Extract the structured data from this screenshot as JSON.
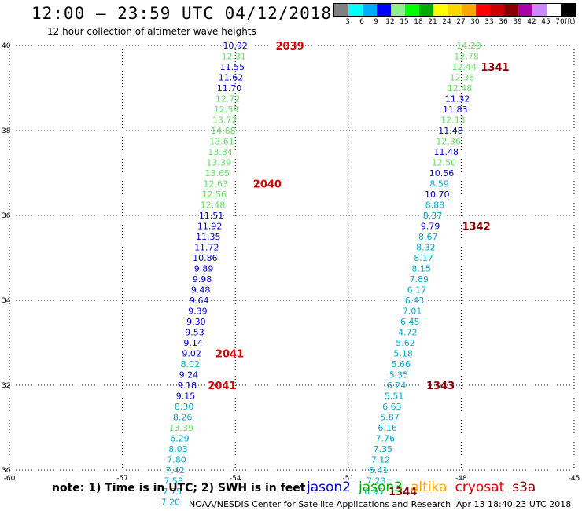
{
  "header": {
    "title": "12:00 – 23:59 UTC 04/12/2018",
    "subtitle": "12 hour collection of altimeter wave heights"
  },
  "color_scale": {
    "labels": [
      "3",
      "6",
      "9",
      "12",
      "15",
      "18",
      "21",
      "24",
      "27",
      "30",
      "33",
      "36",
      "39",
      "42",
      "45",
      "70"
    ],
    "unit": "(ft)",
    "colors": [
      "#808080",
      "#00ffff",
      "#00aaff",
      "#0000ff",
      "#90ee90",
      "#00ff00",
      "#00aa00",
      "#ffff00",
      "#ffd700",
      "#ffa500",
      "#ff0000",
      "#cc0000",
      "#880000",
      "#aa00aa",
      "#cc88ff",
      "#ffffff",
      "#000000"
    ]
  },
  "chart_data": {
    "type": "map",
    "x_axis": {
      "ticks": [
        "-60",
        "-57",
        "-54",
        "-51",
        "-48",
        "-45"
      ],
      "range": [
        -60,
        -45
      ]
    },
    "y_axis": {
      "ticks": [
        "30",
        "32",
        "34",
        "36",
        "38",
        "40"
      ],
      "range": [
        30,
        40
      ]
    },
    "grid": true,
    "series": [
      {
        "name": "pass-2039-2041",
        "points": [
          {
            "lon": -54.0,
            "lat": 40.0,
            "v": "10.92",
            "c": "#0000cc"
          },
          {
            "lon": -54.04,
            "lat": 39.75,
            "v": "12.31",
            "c": "#66dd66"
          },
          {
            "lon": -54.08,
            "lat": 39.5,
            "v": "11.55",
            "c": "#0000cc"
          },
          {
            "lon": -54.12,
            "lat": 39.25,
            "v": "11.62",
            "c": "#0000cc"
          },
          {
            "lon": -54.16,
            "lat": 39.0,
            "v": "11.70",
            "c": "#0000cc"
          },
          {
            "lon": -54.2,
            "lat": 38.75,
            "v": "12.72",
            "c": "#66dd66"
          },
          {
            "lon": -54.24,
            "lat": 38.5,
            "v": "12.59",
            "c": "#66dd66"
          },
          {
            "lon": -54.28,
            "lat": 38.25,
            "v": "13.72",
            "c": "#66dd66"
          },
          {
            "lon": -54.32,
            "lat": 38.0,
            "v": "14.68",
            "c": "#66dd66"
          },
          {
            "lon": -54.36,
            "lat": 37.75,
            "v": "13.61",
            "c": "#66dd66"
          },
          {
            "lon": -54.4,
            "lat": 37.5,
            "v": "13.84",
            "c": "#66dd66"
          },
          {
            "lon": -54.44,
            "lat": 37.25,
            "v": "13.39",
            "c": "#66dd66"
          },
          {
            "lon": -54.48,
            "lat": 37.0,
            "v": "13.65",
            "c": "#66dd66"
          },
          {
            "lon": -54.52,
            "lat": 36.75,
            "v": "12.63",
            "c": "#66dd66"
          },
          {
            "lon": -54.56,
            "lat": 36.5,
            "v": "12.56",
            "c": "#66dd66"
          },
          {
            "lon": -54.6,
            "lat": 36.25,
            "v": "12.48",
            "c": "#66dd66"
          },
          {
            "lon": -54.64,
            "lat": 36.0,
            "v": "11.51",
            "c": "#0000cc"
          },
          {
            "lon": -54.68,
            "lat": 35.75,
            "v": "11.92",
            "c": "#0000cc"
          },
          {
            "lon": -54.72,
            "lat": 35.5,
            "v": "11.35",
            "c": "#0000cc"
          },
          {
            "lon": -54.76,
            "lat": 35.25,
            "v": "11.72",
            "c": "#0000cc"
          },
          {
            "lon": -54.8,
            "lat": 35.0,
            "v": "10.86",
            "c": "#0000cc"
          },
          {
            "lon": -54.84,
            "lat": 34.75,
            "v": "9.89",
            "c": "#0000cc"
          },
          {
            "lon": -54.88,
            "lat": 34.5,
            "v": "9.98",
            "c": "#0000cc"
          },
          {
            "lon": -54.92,
            "lat": 34.25,
            "v": "9.48",
            "c": "#0000cc"
          },
          {
            "lon": -54.96,
            "lat": 34.0,
            "v": "9.64",
            "c": "#0000cc"
          },
          {
            "lon": -55.0,
            "lat": 33.75,
            "v": "9.39",
            "c": "#0000cc"
          },
          {
            "lon": -55.04,
            "lat": 33.5,
            "v": "9.30",
            "c": "#0000cc"
          },
          {
            "lon": -55.08,
            "lat": 33.25,
            "v": "9.53",
            "c": "#0000cc"
          },
          {
            "lon": -55.12,
            "lat": 33.0,
            "v": "9.14",
            "c": "#0000cc"
          },
          {
            "lon": -55.16,
            "lat": 32.75,
            "v": "9.02",
            "c": "#0000cc"
          },
          {
            "lon": -55.2,
            "lat": 32.5,
            "v": "8.02",
            "c": "#00aacc"
          },
          {
            "lon": -55.24,
            "lat": 32.25,
            "v": "9.24",
            "c": "#0000cc"
          },
          {
            "lon": -55.28,
            "lat": 32.0,
            "v": "9.18",
            "c": "#0000cc"
          },
          {
            "lon": -55.32,
            "lat": 31.75,
            "v": "9.15",
            "c": "#0000cc"
          },
          {
            "lon": -55.36,
            "lat": 31.5,
            "v": "8.30",
            "c": "#00aacc"
          },
          {
            "lon": -55.4,
            "lat": 31.25,
            "v": "8.26",
            "c": "#00aacc"
          },
          {
            "lon": -55.44,
            "lat": 31.0,
            "v": "13.39",
            "c": "#66dd66"
          },
          {
            "lon": -55.48,
            "lat": 30.75,
            "v": "6.29",
            "c": "#00aacc"
          },
          {
            "lon": -55.52,
            "lat": 30.5,
            "v": "8.03",
            "c": "#00aacc"
          },
          {
            "lon": -55.56,
            "lat": 30.25,
            "v": "7.80",
            "c": "#00aacc"
          },
          {
            "lon": -55.6,
            "lat": 30.0,
            "v": "7.42",
            "c": "#00aacc"
          },
          {
            "lon": -55.64,
            "lat": 29.75,
            "v": "7.58",
            "c": "#00aacc"
          },
          {
            "lon": -55.68,
            "lat": 29.5,
            "v": "7.75",
            "c": "#00aacc"
          },
          {
            "lon": -55.72,
            "lat": 29.25,
            "v": "7.20",
            "c": "#00aacc"
          }
        ]
      },
      {
        "name": "pass-1341-1344",
        "points": [
          {
            "lon": -47.8,
            "lat": 40.0,
            "v": "14.20",
            "c": "#66dd66"
          },
          {
            "lon": -47.86,
            "lat": 39.75,
            "v": "12.78",
            "c": "#66dd66"
          },
          {
            "lon": -47.92,
            "lat": 39.5,
            "v": "12.44",
            "c": "#66dd66"
          },
          {
            "lon": -47.98,
            "lat": 39.25,
            "v": "12.36",
            "c": "#66dd66"
          },
          {
            "lon": -48.04,
            "lat": 39.0,
            "v": "12.48",
            "c": "#66dd66"
          },
          {
            "lon": -48.1,
            "lat": 38.75,
            "v": "11.32",
            "c": "#0000cc"
          },
          {
            "lon": -48.16,
            "lat": 38.5,
            "v": "11.83",
            "c": "#0000cc"
          },
          {
            "lon": -48.22,
            "lat": 38.25,
            "v": "12.13",
            "c": "#66dd66"
          },
          {
            "lon": -48.28,
            "lat": 38.0,
            "v": "11.48",
            "c": "#0000cc"
          },
          {
            "lon": -48.34,
            "lat": 37.75,
            "v": "12.36",
            "c": "#66dd66"
          },
          {
            "lon": -48.4,
            "lat": 37.5,
            "v": "11.48",
            "c": "#0000cc"
          },
          {
            "lon": -48.46,
            "lat": 37.25,
            "v": "12.50",
            "c": "#66dd66"
          },
          {
            "lon": -48.52,
            "lat": 37.0,
            "v": "10.56",
            "c": "#0000cc"
          },
          {
            "lon": -48.58,
            "lat": 36.75,
            "v": "8.59",
            "c": "#00aacc"
          },
          {
            "lon": -48.64,
            "lat": 36.5,
            "v": "10.70",
            "c": "#0000cc"
          },
          {
            "lon": -48.7,
            "lat": 36.25,
            "v": "8.88",
            "c": "#00aacc"
          },
          {
            "lon": -48.76,
            "lat": 36.0,
            "v": "8.37",
            "c": "#00aacc"
          },
          {
            "lon": -48.82,
            "lat": 35.75,
            "v": "9.79",
            "c": "#0000cc"
          },
          {
            "lon": -48.88,
            "lat": 35.5,
            "v": "8.67",
            "c": "#00aacc"
          },
          {
            "lon": -48.94,
            "lat": 35.25,
            "v": "8.32",
            "c": "#00aacc"
          },
          {
            "lon": -49.0,
            "lat": 35.0,
            "v": "8.17",
            "c": "#00aacc"
          },
          {
            "lon": -49.06,
            "lat": 34.75,
            "v": "8.15",
            "c": "#00aacc"
          },
          {
            "lon": -49.12,
            "lat": 34.5,
            "v": "7.89",
            "c": "#00aacc"
          },
          {
            "lon": -49.18,
            "lat": 34.25,
            "v": "6.17",
            "c": "#00aacc"
          },
          {
            "lon": -49.24,
            "lat": 34.0,
            "v": "6.43",
            "c": "#00aacc"
          },
          {
            "lon": -49.3,
            "lat": 33.75,
            "v": "7.01",
            "c": "#00aacc"
          },
          {
            "lon": -49.36,
            "lat": 33.5,
            "v": "6.45",
            "c": "#00aacc"
          },
          {
            "lon": -49.42,
            "lat": 33.25,
            "v": "4.72",
            "c": "#00aacc"
          },
          {
            "lon": -49.48,
            "lat": 33.0,
            "v": "5.62",
            "c": "#00aacc"
          },
          {
            "lon": -49.54,
            "lat": 32.75,
            "v": "5.18",
            "c": "#00aacc"
          },
          {
            "lon": -49.6,
            "lat": 32.5,
            "v": "5.66",
            "c": "#00aacc"
          },
          {
            "lon": -49.66,
            "lat": 32.25,
            "v": "5.35",
            "c": "#00aacc"
          },
          {
            "lon": -49.72,
            "lat": 32.0,
            "v": "6.24",
            "c": "#00aacc"
          },
          {
            "lon": -49.78,
            "lat": 31.75,
            "v": "5.51",
            "c": "#00aacc"
          },
          {
            "lon": -49.84,
            "lat": 31.5,
            "v": "6.63",
            "c": "#00aacc"
          },
          {
            "lon": -49.9,
            "lat": 31.25,
            "v": "5.87",
            "c": "#00aacc"
          },
          {
            "lon": -49.96,
            "lat": 31.0,
            "v": "6.16",
            "c": "#00aacc"
          },
          {
            "lon": -50.02,
            "lat": 30.75,
            "v": "7.76",
            "c": "#00aacc"
          },
          {
            "lon": -50.08,
            "lat": 30.5,
            "v": "7.35",
            "c": "#00aacc"
          },
          {
            "lon": -50.14,
            "lat": 30.25,
            "v": "7.12",
            "c": "#00aacc"
          },
          {
            "lon": -50.2,
            "lat": 30.0,
            "v": "6.41",
            "c": "#00aacc"
          },
          {
            "lon": -50.26,
            "lat": 29.75,
            "v": "7.23",
            "c": "#00aacc"
          },
          {
            "lon": -50.32,
            "lat": 29.5,
            "v": "6.95",
            "c": "#00aacc"
          }
        ]
      }
    ],
    "annotations": [
      {
        "text": "2039",
        "lon": -52.55,
        "lat": 40.0,
        "c": "#dd0000"
      },
      {
        "text": "2040",
        "lon": -53.15,
        "lat": 36.75,
        "c": "#dd0000"
      },
      {
        "text": "2041",
        "lon": -54.15,
        "lat": 32.75,
        "c": "#dd0000"
      },
      {
        "text": "2041",
        "lon": -54.35,
        "lat": 32.0,
        "c": "#dd0000"
      },
      {
        "text": "1341",
        "lon": -47.1,
        "lat": 39.5,
        "c": "#880000"
      },
      {
        "text": "1342",
        "lon": -47.6,
        "lat": 35.75,
        "c": "#880000"
      },
      {
        "text": "1343",
        "lon": -48.55,
        "lat": 32.0,
        "c": "#880000"
      },
      {
        "text": "1344",
        "lon": -49.55,
        "lat": 29.5,
        "c": "#880000"
      }
    ]
  },
  "footer": {
    "note": "note:  1) Time is in UTC;  2) SWH is in feet",
    "legend": [
      {
        "label": "jason2",
        "color": "#0000cc"
      },
      {
        "label": "jason3",
        "color": "#00aa00"
      },
      {
        "label": "altika",
        "color": "#ffa500"
      },
      {
        "label": "cryosat",
        "color": "#dd0000"
      },
      {
        "label": "s3a",
        "color": "#880000"
      }
    ],
    "credit": "NOAA/NESDIS Center for Satellite Applications and Research",
    "timestamp": "Apr 13 18:40:23 UTC 2018"
  }
}
